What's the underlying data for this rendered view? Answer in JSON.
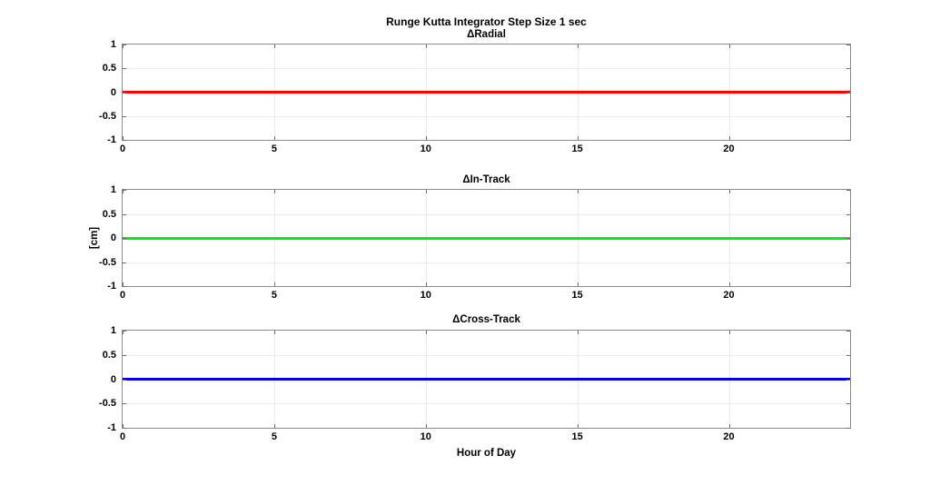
{
  "figure_title": "Runge Kutta Integrator Step Size 1 sec",
  "chart_data": [
    {
      "type": "line",
      "title": "ΔRadial",
      "series": [
        {
          "name": "ΔRadial",
          "color": "#ff0000",
          "x": [
            0,
            24
          ],
          "y": [
            0,
            0
          ]
        }
      ],
      "xlabel": "",
      "ylabel": "",
      "xlim": [
        0,
        24
      ],
      "ylim": [
        -1,
        1
      ],
      "xticks": [
        0,
        5,
        10,
        15,
        20
      ],
      "yticks": [
        -1,
        -0.5,
        0,
        0.5,
        1
      ],
      "grid": true,
      "legend": "none"
    },
    {
      "type": "line",
      "title": "ΔIn-Track",
      "series": [
        {
          "name": "ΔIn-Track",
          "color": "#00ee00",
          "x": [
            0,
            24
          ],
          "y": [
            0,
            0
          ]
        }
      ],
      "xlabel": "",
      "ylabel": "[cm]",
      "xlim": [
        0,
        24
      ],
      "ylim": [
        -1,
        1
      ],
      "xticks": [
        0,
        5,
        10,
        15,
        20
      ],
      "yticks": [
        -1,
        -0.5,
        0,
        0.5,
        1
      ],
      "grid": true,
      "legend": "none"
    },
    {
      "type": "line",
      "title": "ΔCross-Track",
      "series": [
        {
          "name": "ΔCross-Track",
          "color": "#0000ee",
          "x": [
            0,
            24
          ],
          "y": [
            0,
            0
          ]
        }
      ],
      "xlabel": "Hour of Day",
      "ylabel": "",
      "xlim": [
        0,
        24
      ],
      "ylim": [
        -1,
        1
      ],
      "xticks": [
        0,
        5,
        10,
        15,
        20
      ],
      "yticks": [
        -1,
        -0.5,
        0,
        0.5,
        1
      ],
      "grid": true,
      "legend": "none"
    }
  ]
}
